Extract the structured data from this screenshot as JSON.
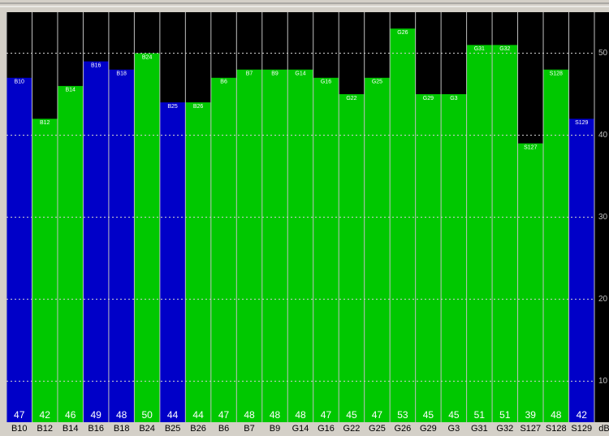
{
  "chart_data": {
    "type": "bar",
    "unit": "dB",
    "categories": [
      "B10",
      "B12",
      "B14",
      "B16",
      "B18",
      "B24",
      "B25",
      "B26",
      "B6",
      "B7",
      "B9",
      "G14",
      "G16",
      "G22",
      "G25",
      "G26",
      "G29",
      "G3",
      "G31",
      "G32",
      "S127",
      "S128",
      "S129"
    ],
    "values": [
      47,
      42,
      46,
      49,
      48,
      50,
      44,
      44,
      47,
      48,
      48,
      48,
      47,
      45,
      47,
      53,
      45,
      45,
      51,
      51,
      39,
      48,
      42
    ],
    "colors": [
      "#0000c8",
      "#00c800",
      "#00c800",
      "#0000c8",
      "#0000c8",
      "#00c800",
      "#0000c8",
      "#00c800",
      "#00c800",
      "#00c800",
      "#00c800",
      "#00c800",
      "#00c800",
      "#00c800",
      "#00c800",
      "#00c800",
      "#00c800",
      "#00c800",
      "#00c800",
      "#00c800",
      "#00c800",
      "#00c800",
      "#0000c8"
    ],
    "ylim": [
      5,
      55
    ],
    "yticks": [
      10,
      20,
      30,
      40,
      50
    ],
    "grid": true
  }
}
